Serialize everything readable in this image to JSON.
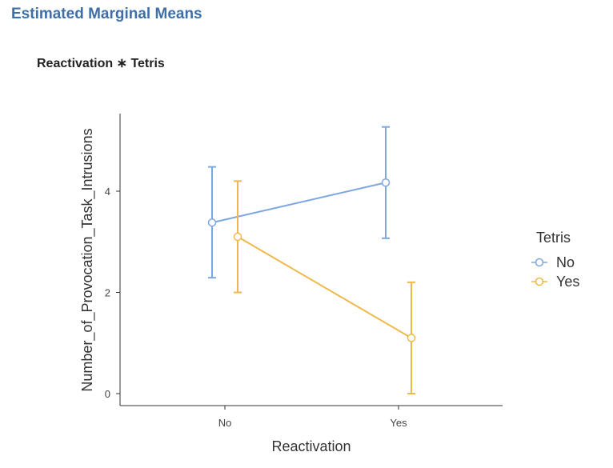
{
  "header": {
    "title": "Estimated Marginal Means",
    "subtitle": "Reactivation ∗ Tetris"
  },
  "chart_data": {
    "type": "line",
    "title": "Reactivation ∗ Tetris",
    "xlabel": "Reactivation",
    "ylabel": "Number_of_Provocation_Task_Intrusions",
    "categories": [
      "No",
      "Yes"
    ],
    "yticks": [
      0,
      2,
      4
    ],
    "ylim": [
      -0.25,
      5.5
    ],
    "legend": {
      "title": "Tetris",
      "position": "right"
    },
    "grid": false,
    "series": [
      {
        "name": "No",
        "color": "#7ea6e0",
        "values": [
          3.38,
          4.17
        ],
        "lower": [
          2.29,
          3.07
        ],
        "upper": [
          4.48,
          5.27
        ]
      },
      {
        "name": "Yes",
        "color": "#f0b84a",
        "values": [
          3.1,
          1.1
        ],
        "lower": [
          2.0,
          0.0
        ],
        "upper": [
          4.2,
          2.2
        ]
      }
    ]
  }
}
